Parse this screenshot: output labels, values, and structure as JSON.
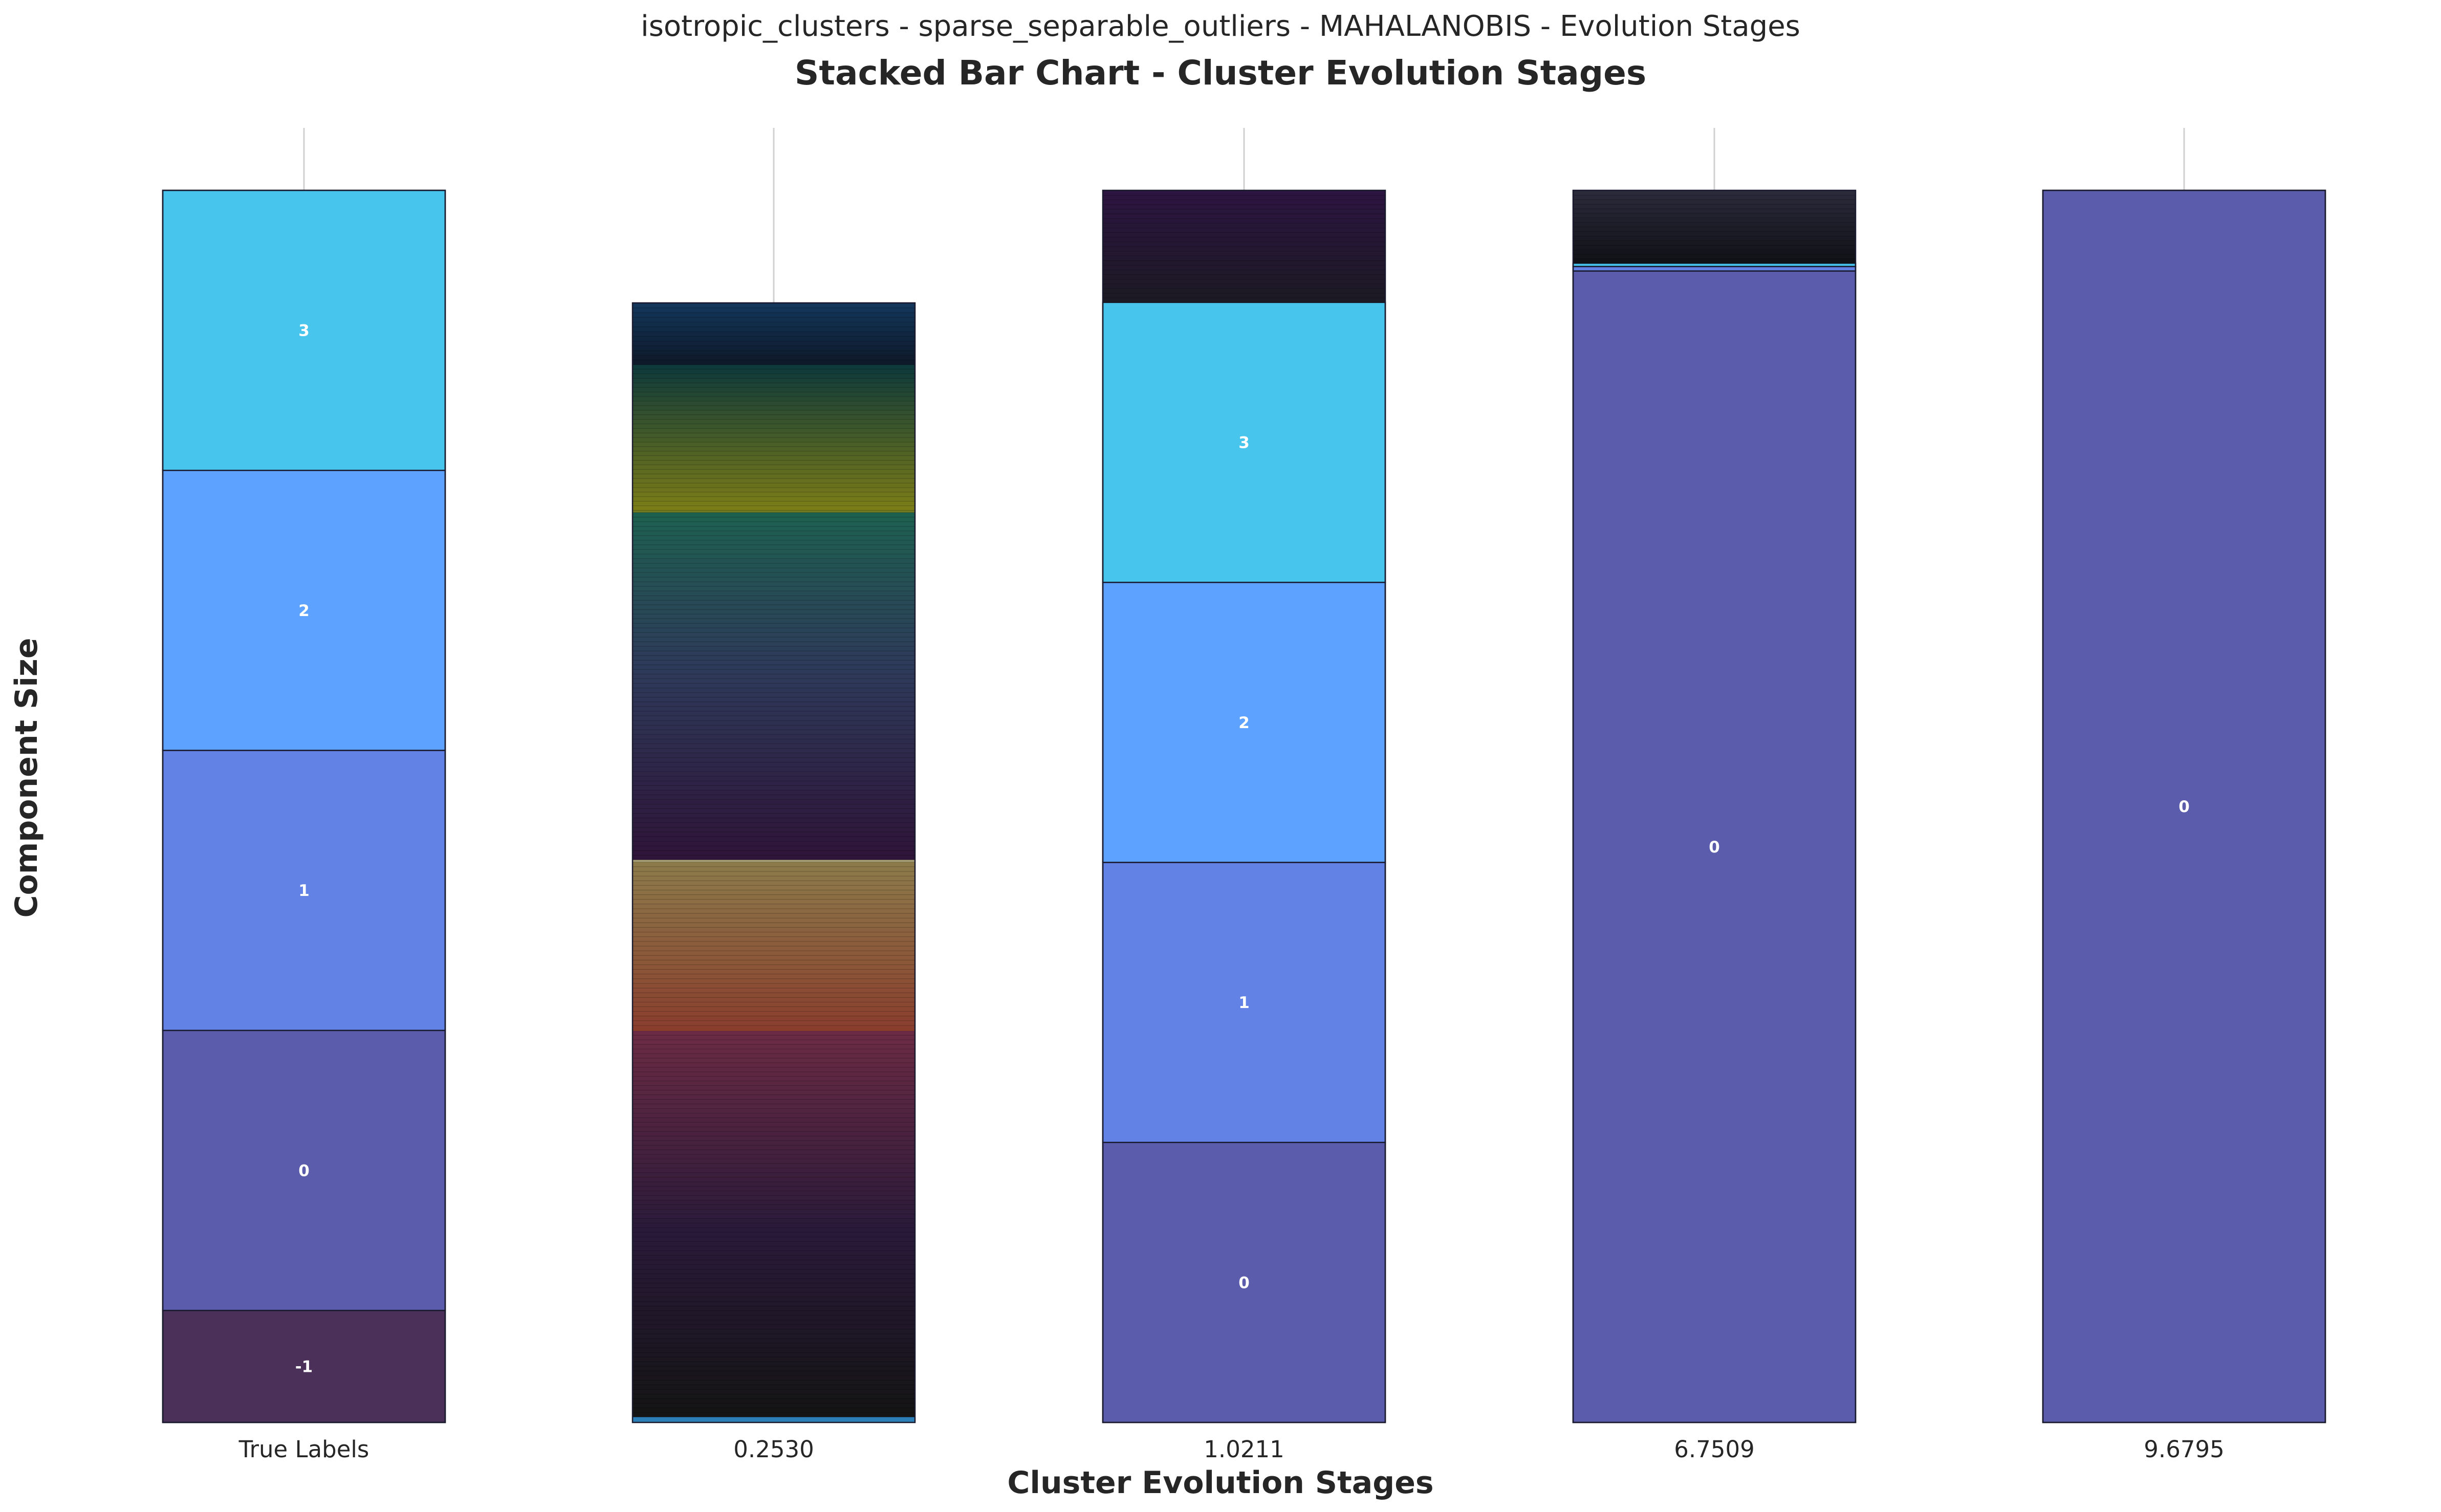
{
  "chart_data": {
    "type": "bar",
    "stacked": true,
    "suptitle": "isotropic_clusters - sparse_separable_outliers - MAHALANOBIS - Evolution Stages",
    "title": "Stacked Bar Chart - Cluster Evolution Stages",
    "xlabel": "Cluster Evolution Stages",
    "ylabel": "Component Size",
    "grid": "vertical",
    "legend": "none",
    "categories": [
      "True Labels",
      "0.2530",
      "1.0211",
      "6.7509",
      "9.6795"
    ],
    "ylim": [
      0,
      1100
    ],
    "colors": {
      "outlier": "#4b3059",
      "c0": "#5c5cac",
      "c1": "#6282e6",
      "c2": "#5ca2fe",
      "c3": "#48c5ed"
    },
    "stacks": [
      {
        "category": "True Labels",
        "segments": [
          {
            "label": "-1",
            "value": 100,
            "color": "#4b3059"
          },
          {
            "label": "0",
            "value": 250,
            "color": "#5c5cac"
          },
          {
            "label": "1",
            "value": 250,
            "color": "#6282e6"
          },
          {
            "label": "2",
            "value": 250,
            "color": "#5ca2fe"
          },
          {
            "label": "3",
            "value": 250,
            "color": "#48c5ed"
          }
        ]
      },
      {
        "category": "0.2530",
        "many_singletons": true,
        "bands": [
          {
            "value": 5,
            "from": "#2d7fb8",
            "to": "#3a8ec0"
          },
          {
            "value": 165,
            "from": "#141414",
            "to": "#2a1a3a"
          },
          {
            "value": 180,
            "from": "#2a1a3a",
            "to": "#6b2b44"
          },
          {
            "value": 0.5,
            "from": "#e06a30",
            "to": "#e06a30"
          },
          {
            "value": 150,
            "from": "#8a3f2e",
            "to": "#8c7a4a"
          },
          {
            "value": 2,
            "from": "#a8a076",
            "to": "#a8a076"
          },
          {
            "value": 170,
            "from": "#2e1438",
            "to": "#2e3a5a"
          },
          {
            "value": 140,
            "from": "#2e3a5a",
            "to": "#1e6050"
          },
          {
            "value": 2,
            "from": "#6f7a22",
            "to": "#6f7a22"
          },
          {
            "value": 130,
            "from": "#7a7c18",
            "to": "#0f3a3a"
          },
          {
            "value": 55,
            "from": "#0e1a2a",
            "to": "#13365a"
          }
        ]
      },
      {
        "category": "1.0211",
        "segments": [
          {
            "label": "0",
            "value": 250,
            "color": "#5c5cac"
          },
          {
            "label": "1",
            "value": 250,
            "color": "#6282e6"
          },
          {
            "label": "2",
            "value": 250,
            "color": "#5ca2fe"
          },
          {
            "label": "3",
            "value": 250,
            "color": "#48c5ed"
          }
        ],
        "top_noise": {
          "value": 100,
          "from": "#1c1a24",
          "to": "#2c1540"
        }
      },
      {
        "category": "6.7509",
        "segments": [
          {
            "label": "0",
            "value": 1028,
            "color": "#5c5cac"
          },
          {
            "label": "",
            "value": 4,
            "color": "#6282e6"
          },
          {
            "label": "",
            "value": 3,
            "color": "#48c5ed"
          }
        ],
        "top_noise": {
          "value": 65,
          "from": "#111118",
          "to": "#2a2a3a"
        }
      },
      {
        "category": "9.6795",
        "segments": [
          {
            "label": "0",
            "value": 1100,
            "color": "#5c5cac"
          }
        ]
      }
    ]
  }
}
